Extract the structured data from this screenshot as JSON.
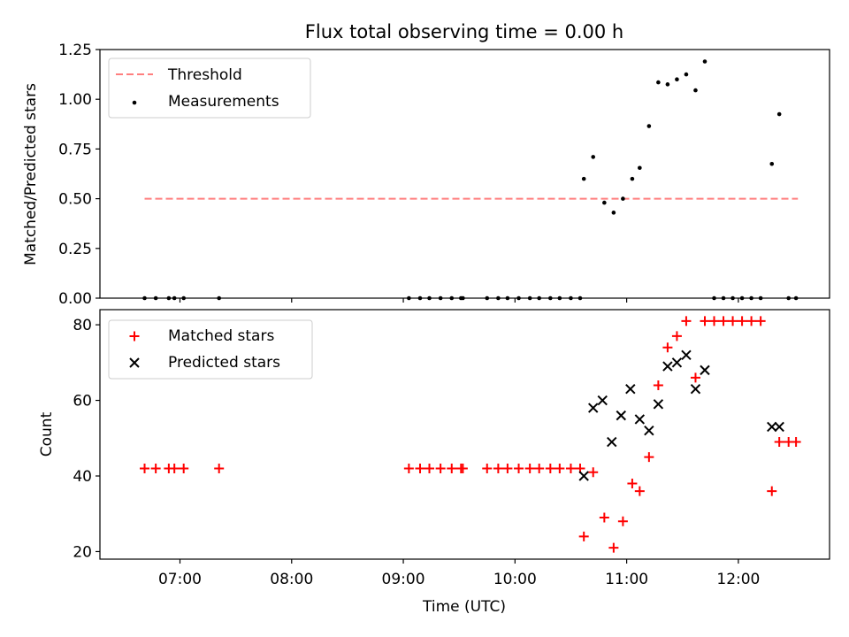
{
  "chart_data": [
    {
      "type": "scatter",
      "title": "Flux total observing time = 0.00 h",
      "xlabel": "",
      "ylabel": "Matched/Predicted stars",
      "ylim": [
        0,
        1.25
      ],
      "yticks": [
        "0.00",
        "0.25",
        "0.50",
        "0.75",
        "1.00",
        "1.25"
      ],
      "grid": false,
      "legend_position": "top-left",
      "threshold": {
        "name": "Threshold",
        "value": 0.5,
        "x_range": [
          "06:41",
          "12:32"
        ],
        "color": "#ff7f7f",
        "style": "dashed"
      },
      "series": [
        {
          "name": "Measurements",
          "color": "#000000",
          "marker": "dot",
          "points": [
            {
              "x": "06:41",
              "y": 0.0
            },
            {
              "x": "06:47",
              "y": 0.0
            },
            {
              "x": "06:54",
              "y": 0.0
            },
            {
              "x": "06:57",
              "y": 0.0
            },
            {
              "x": "07:02",
              "y": 0.0
            },
            {
              "x": "07:21",
              "y": 0.0
            },
            {
              "x": "09:03",
              "y": 0.0
            },
            {
              "x": "09:09",
              "y": 0.0
            },
            {
              "x": "09:14",
              "y": 0.0
            },
            {
              "x": "09:20",
              "y": 0.0
            },
            {
              "x": "09:26",
              "y": 0.0
            },
            {
              "x": "09:31",
              "y": 0.0
            },
            {
              "x": "09:32",
              "y": 0.0
            },
            {
              "x": "09:45",
              "y": 0.0
            },
            {
              "x": "09:51",
              "y": 0.0
            },
            {
              "x": "09:56",
              "y": 0.0
            },
            {
              "x": "10:02",
              "y": 0.0
            },
            {
              "x": "10:08",
              "y": 0.0
            },
            {
              "x": "10:13",
              "y": 0.0
            },
            {
              "x": "10:19",
              "y": 0.0
            },
            {
              "x": "10:24",
              "y": 0.0
            },
            {
              "x": "10:30",
              "y": 0.0
            },
            {
              "x": "10:35",
              "y": 0.0
            },
            {
              "x": "10:37",
              "y": 0.6
            },
            {
              "x": "10:42",
              "y": 0.71
            },
            {
              "x": "10:48",
              "y": 0.48
            },
            {
              "x": "10:53",
              "y": 0.43
            },
            {
              "x": "10:58",
              "y": 0.5
            },
            {
              "x": "11:03",
              "y": 0.6
            },
            {
              "x": "11:07",
              "y": 0.655
            },
            {
              "x": "11:12",
              "y": 0.865
            },
            {
              "x": "11:17",
              "y": 1.085
            },
            {
              "x": "11:22",
              "y": 1.075
            },
            {
              "x": "11:27",
              "y": 1.1
            },
            {
              "x": "11:32",
              "y": 1.125
            },
            {
              "x": "11:37",
              "y": 1.045
            },
            {
              "x": "11:42",
              "y": 1.19
            },
            {
              "x": "11:47",
              "y": 0.0
            },
            {
              "x": "11:52",
              "y": 0.0
            },
            {
              "x": "11:57",
              "y": 0.0
            },
            {
              "x": "12:02",
              "y": 0.0
            },
            {
              "x": "12:07",
              "y": 0.0
            },
            {
              "x": "12:12",
              "y": 0.0
            },
            {
              "x": "12:18",
              "y": 0.675
            },
            {
              "x": "12:22",
              "y": 0.925
            },
            {
              "x": "12:27",
              "y": 0.0
            },
            {
              "x": "12:31",
              "y": 0.0
            }
          ]
        }
      ]
    },
    {
      "type": "scatter",
      "title": "",
      "xlabel": "Time (UTC)",
      "ylabel": "Count",
      "ylim": [
        18,
        84
      ],
      "xlim": [
        "06:17",
        "12:49"
      ],
      "yticks": [
        "20",
        "40",
        "60",
        "80"
      ],
      "xticks": [
        "07:00",
        "08:00",
        "09:00",
        "10:00",
        "11:00",
        "12:00"
      ],
      "grid": false,
      "legend_position": "top-left",
      "series": [
        {
          "name": "Matched stars",
          "color": "#ff0000",
          "marker": "plus",
          "points": [
            {
              "x": "06:41",
              "y": 42
            },
            {
              "x": "06:47",
              "y": 42
            },
            {
              "x": "06:54",
              "y": 42
            },
            {
              "x": "06:57",
              "y": 42
            },
            {
              "x": "07:02",
              "y": 42
            },
            {
              "x": "07:21",
              "y": 42
            },
            {
              "x": "09:03",
              "y": 42
            },
            {
              "x": "09:09",
              "y": 42
            },
            {
              "x": "09:14",
              "y": 42
            },
            {
              "x": "09:20",
              "y": 42
            },
            {
              "x": "09:26",
              "y": 42
            },
            {
              "x": "09:31",
              "y": 42
            },
            {
              "x": "09:32",
              "y": 42
            },
            {
              "x": "09:45",
              "y": 42
            },
            {
              "x": "09:51",
              "y": 42
            },
            {
              "x": "09:56",
              "y": 42
            },
            {
              "x": "10:02",
              "y": 42
            },
            {
              "x": "10:08",
              "y": 42
            },
            {
              "x": "10:13",
              "y": 42
            },
            {
              "x": "10:19",
              "y": 42
            },
            {
              "x": "10:24",
              "y": 42
            },
            {
              "x": "10:30",
              "y": 42
            },
            {
              "x": "10:35",
              "y": 42
            },
            {
              "x": "10:37",
              "y": 24
            },
            {
              "x": "10:42",
              "y": 41
            },
            {
              "x": "10:48",
              "y": 29
            },
            {
              "x": "10:53",
              "y": 21
            },
            {
              "x": "10:58",
              "y": 28
            },
            {
              "x": "11:03",
              "y": 38
            },
            {
              "x": "11:07",
              "y": 36
            },
            {
              "x": "11:12",
              "y": 45
            },
            {
              "x": "11:17",
              "y": 64
            },
            {
              "x": "11:22",
              "y": 74
            },
            {
              "x": "11:27",
              "y": 77
            },
            {
              "x": "11:32",
              "y": 81
            },
            {
              "x": "11:37",
              "y": 66
            },
            {
              "x": "11:42",
              "y": 81
            },
            {
              "x": "11:47",
              "y": 81
            },
            {
              "x": "11:52",
              "y": 81
            },
            {
              "x": "11:57",
              "y": 81
            },
            {
              "x": "12:02",
              "y": 81
            },
            {
              "x": "12:07",
              "y": 81
            },
            {
              "x": "12:12",
              "y": 81
            },
            {
              "x": "12:18",
              "y": 36
            },
            {
              "x": "12:22",
              "y": 49
            },
            {
              "x": "12:27",
              "y": 49
            },
            {
              "x": "12:31",
              "y": 49
            }
          ]
        },
        {
          "name": "Predicted stars",
          "color": "#000000",
          "marker": "x",
          "points": [
            {
              "x": "10:37",
              "y": 40
            },
            {
              "x": "10:42",
              "y": 58
            },
            {
              "x": "10:47",
              "y": 60
            },
            {
              "x": "10:52",
              "y": 49
            },
            {
              "x": "10:57",
              "y": 56
            },
            {
              "x": "11:02",
              "y": 63
            },
            {
              "x": "11:07",
              "y": 55
            },
            {
              "x": "11:12",
              "y": 52
            },
            {
              "x": "11:17",
              "y": 59
            },
            {
              "x": "11:22",
              "y": 69
            },
            {
              "x": "11:27",
              "y": 70
            },
            {
              "x": "11:32",
              "y": 72
            },
            {
              "x": "11:37",
              "y": 63
            },
            {
              "x": "11:42",
              "y": 68
            },
            {
              "x": "12:18",
              "y": 53
            },
            {
              "x": "12:22",
              "y": 53
            }
          ]
        }
      ]
    }
  ]
}
